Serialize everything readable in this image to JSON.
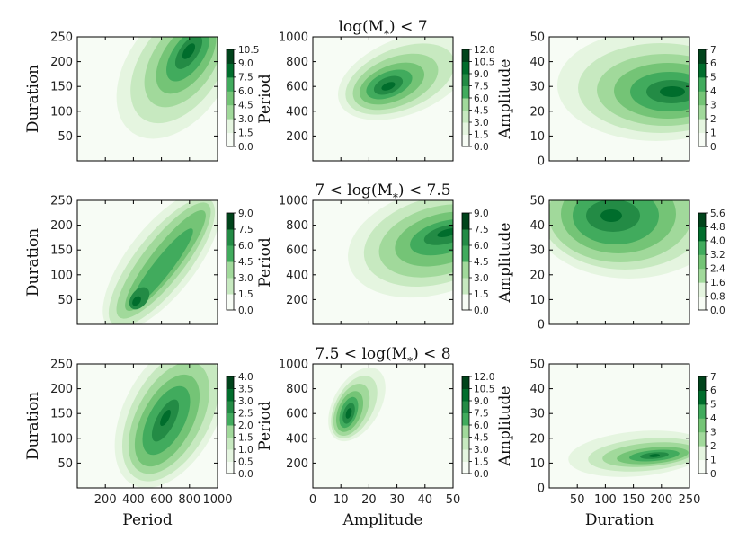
{
  "colors": {
    "levels": [
      "#f7fcf5",
      "#e5f5e0",
      "#c7e9c0",
      "#a1d99b",
      "#74c476",
      "#41ab5d",
      "#238b45",
      "#006d2c",
      "#00441b"
    ],
    "axis": "#000000"
  },
  "chart_data": {
    "type": "contour",
    "rows": [
      {
        "title": "log(M*) < 7",
        "panels": [
          {
            "xlabel": "",
            "ylabel": "Duration",
            "xlim": [
              0,
              1000
            ],
            "ylim": [
              0,
              250
            ],
            "xticks": [],
            "yticks": [
              "50",
              "100",
              "150",
              "200",
              "250"
            ],
            "cbar_label": "Period",
            "cbar_ticks": [
              "0.0",
              "1.5",
              "3.0",
              "4.5",
              "6.0",
              "7.5",
              "9.0",
              "10.5"
            ],
            "density": {
              "center": [
                760,
                205
              ],
              "spread": [
                170,
                55
              ],
              "slope": 0.25,
              "note": "elongated diagonal blob, peak ~(780,220)"
            }
          },
          {
            "xlabel": "",
            "ylabel": "",
            "xlim": [
              0,
              50
            ],
            "ylim": [
              0,
              1000
            ],
            "xticks": [],
            "yticks": [
              "200",
              "400",
              "600",
              "800",
              "1000"
            ],
            "cbar_label": "",
            "cbar_ticks": [
              "0.0",
              "1.5",
              "3.0",
              "4.5",
              "6.0",
              "7.5",
              "9.0",
              "10.5",
              "12.0"
            ],
            "density": {
              "center": [
                27,
                650
              ],
              "spread": [
                14,
                160
              ],
              "note": "peak ~(27,620)"
            }
          },
          {
            "xlabel": "",
            "ylabel": "Amplitude",
            "xlim": [
              0,
              250
            ],
            "ylim": [
              0,
              50
            ],
            "xticks": [],
            "yticks": [
              "0",
              "10",
              "20",
              "30",
              "40",
              "50"
            ],
            "cbar_label": "",
            "cbar_ticks": [
              "0",
              "1",
              "2",
              "3",
              "4",
              "5",
              "6",
              "7"
            ],
            "density": {
              "center": [
                200,
                28
              ],
              "spread": [
                80,
                15
              ],
              "note": "peak ~(200,27)"
            }
          }
        ]
      },
      {
        "title": "7 < log(M*) < 7.5",
        "panels": [
          {
            "xlabel": "",
            "ylabel": "Duration",
            "xlim": [
              0,
              1000
            ],
            "ylim": [
              0,
              250
            ],
            "xticks": [],
            "yticks": [
              "50",
              "100",
              "150",
              "200",
              "250"
            ],
            "cbar_label": "Period",
            "cbar_ticks": [
              "0.0",
              "1.5",
              "3.0",
              "4.5",
              "6.0",
              "7.5",
              "9.0"
            ],
            "density": {
              "center": [
                430,
                55
              ],
              "spread": [
                60,
                25
              ],
              "note": "diagonal band from (400,40) to (950,260)"
            }
          },
          {
            "xlabel": "",
            "ylabel": "",
            "xlim": [
              0,
              50
            ],
            "ylim": [
              0,
              1000
            ],
            "xticks": [],
            "yticks": [
              "200",
              "400",
              "600",
              "800",
              "1000"
            ],
            "cbar_label": "",
            "cbar_ticks": [
              "0.0",
              "1.5",
              "3.0",
              "4.5",
              "6.0",
              "7.5",
              "9.0"
            ],
            "density": {
              "center": [
                42,
                760
              ],
              "spread": [
                20,
                200
              ],
              "note": "peak ~(45,750)"
            }
          },
          {
            "xlabel": "",
            "ylabel": "Amplitude",
            "xlim": [
              0,
              250
            ],
            "ylim": [
              0,
              50
            ],
            "xticks": [],
            "yticks": [
              "0",
              "10",
              "20",
              "30",
              "40",
              "50"
            ],
            "cbar_label": "",
            "cbar_ticks": [
              "0.0",
              "0.8",
              "1.6",
              "2.4",
              "3.2",
              "4.0",
              "4.8",
              "5.6"
            ],
            "density": {
              "center": [
                120,
                42
              ],
              "spread": [
                90,
                15
              ],
              "note": "peak ~(120,42)"
            }
          }
        ]
      },
      {
        "title": "7.5 < log(M*) < 8",
        "panels": [
          {
            "xlabel": "Period",
            "ylabel": "Duration",
            "xlim": [
              0,
              1000
            ],
            "ylim": [
              0,
              250
            ],
            "xticks": [
              "200",
              "400",
              "600",
              "800",
              "1000"
            ],
            "yticks": [
              "50",
              "100",
              "150",
              "200",
              "250"
            ],
            "cbar_label": "Period",
            "cbar_ticks": [
              "0.0",
              "0.5",
              "1.0",
              "1.5",
              "2.0",
              "2.5",
              "3.0",
              "3.5",
              "4.0"
            ],
            "density": {
              "center": [
                660,
                160
              ],
              "spread": [
                190,
                70
              ],
              "note": "broad blob, peak ~(650,160)"
            }
          },
          {
            "xlabel": "Amplitude",
            "ylabel": "",
            "xlim": [
              0,
              50
            ],
            "ylim": [
              0,
              1000
            ],
            "xticks": [
              "0",
              "10",
              "20",
              "30",
              "40",
              "50"
            ],
            "yticks": [
              "200",
              "400",
              "600",
              "800",
              "1000"
            ],
            "cbar_label": "",
            "cbar_ticks": [
              "0.0",
              "1.5",
              "3.0",
              "4.5",
              "6.0",
              "7.5",
              "9.0",
              "10.5",
              "12.0"
            ],
            "density": {
              "center": [
                13,
                620
              ],
              "spread": [
                6,
                130
              ],
              "note": "sharp peak ~(13,620)"
            }
          },
          {
            "xlabel": "Duration",
            "ylabel": "Amplitude",
            "xlim": [
              0,
              250
            ],
            "ylim": [
              0,
              50
            ],
            "xticks": [
              "50",
              "100",
              "150",
              "200",
              "250"
            ],
            "yticks": [
              "0",
              "10",
              "20",
              "30",
              "40",
              "50"
            ],
            "cbar_label": "",
            "cbar_ticks": [
              "0",
              "1",
              "2",
              "3",
              "4",
              "5",
              "6",
              "7"
            ],
            "density": {
              "center": [
                170,
                12
              ],
              "spread": [
                75,
                6
              ],
              "note": "peak ~(170,12)"
            }
          }
        ]
      }
    ]
  }
}
